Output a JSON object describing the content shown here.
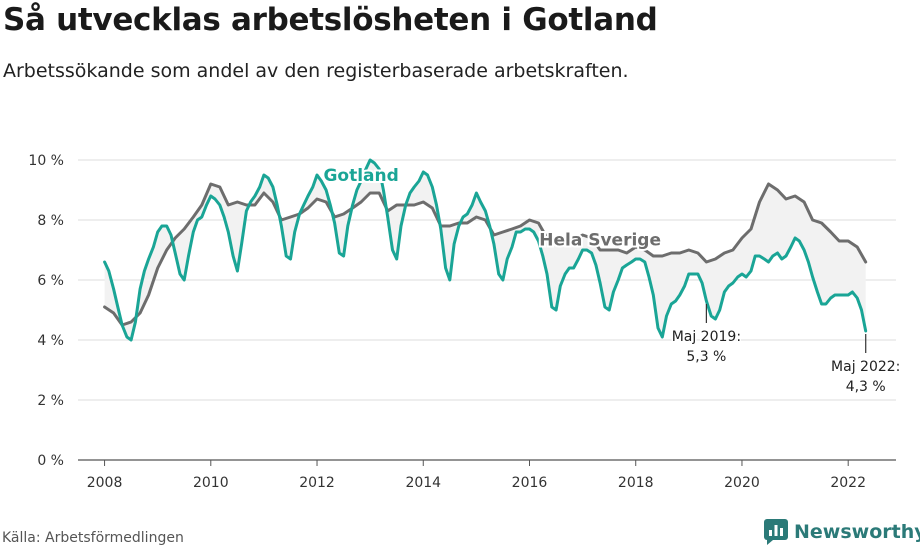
{
  "header": {
    "title": "Så utvecklas arbetslösheten i Gotland",
    "subtitle": "Arbetssökande som andel av den registerbaserade arbetskraften."
  },
  "footer": {
    "source": "Källa: Arbetsförmedlingen",
    "brand": "Newsworthy",
    "brand_icon": "newsworthy-logo-icon"
  },
  "colors": {
    "gotland": "#1aa596",
    "sverige": "#6d6d6d",
    "band": "#f2f2f2",
    "grid": "#dcdcdc",
    "brand": "#2b7a78"
  },
  "chart_data": {
    "type": "line",
    "xlim": [
      2007.5,
      2022.9
    ],
    "ylim": [
      0,
      10
    ],
    "x_ticks": [
      2008,
      2010,
      2012,
      2014,
      2016,
      2018,
      2020,
      2022
    ],
    "x_tick_labels": [
      "2008",
      "2010",
      "2012",
      "2014",
      "2016",
      "2018",
      "2020",
      "2022"
    ],
    "y_ticks": [
      0,
      2,
      4,
      6,
      8,
      10
    ],
    "y_tick_labels": [
      "0 %",
      "2 %",
      "4 %",
      "6 %",
      "8 %",
      "10 %"
    ],
    "grid": true,
    "series": [
      {
        "name": "Hela Sverige",
        "key": "sverige",
        "points": [
          [
            2008.0,
            5.1
          ],
          [
            2008.17,
            4.9
          ],
          [
            2008.33,
            4.5
          ],
          [
            2008.5,
            4.6
          ],
          [
            2008.67,
            4.9
          ],
          [
            2008.83,
            5.5
          ],
          [
            2009.0,
            6.4
          ],
          [
            2009.17,
            7.0
          ],
          [
            2009.33,
            7.4
          ],
          [
            2009.5,
            7.7
          ],
          [
            2009.67,
            8.1
          ],
          [
            2009.83,
            8.5
          ],
          [
            2010.0,
            9.2
          ],
          [
            2010.17,
            9.1
          ],
          [
            2010.33,
            8.5
          ],
          [
            2010.5,
            8.6
          ],
          [
            2010.67,
            8.5
          ],
          [
            2010.83,
            8.5
          ],
          [
            2011.0,
            8.9
          ],
          [
            2011.17,
            8.6
          ],
          [
            2011.33,
            8.0
          ],
          [
            2011.5,
            8.1
          ],
          [
            2011.67,
            8.2
          ],
          [
            2011.83,
            8.4
          ],
          [
            2012.0,
            8.7
          ],
          [
            2012.17,
            8.6
          ],
          [
            2012.33,
            8.1
          ],
          [
            2012.5,
            8.2
          ],
          [
            2012.67,
            8.4
          ],
          [
            2012.83,
            8.6
          ],
          [
            2013.0,
            8.9
          ],
          [
            2013.17,
            8.9
          ],
          [
            2013.33,
            8.3
          ],
          [
            2013.5,
            8.5
          ],
          [
            2013.67,
            8.5
          ],
          [
            2013.83,
            8.5
          ],
          [
            2014.0,
            8.6
          ],
          [
            2014.17,
            8.4
          ],
          [
            2014.33,
            7.8
          ],
          [
            2014.5,
            7.8
          ],
          [
            2014.67,
            7.9
          ],
          [
            2014.83,
            7.9
          ],
          [
            2015.0,
            8.1
          ],
          [
            2015.17,
            8.0
          ],
          [
            2015.33,
            7.5
          ],
          [
            2015.5,
            7.6
          ],
          [
            2015.67,
            7.7
          ],
          [
            2015.83,
            7.8
          ],
          [
            2016.0,
            8.0
          ],
          [
            2016.17,
            7.9
          ],
          [
            2016.33,
            7.4
          ],
          [
            2016.5,
            7.4
          ],
          [
            2016.67,
            7.3
          ],
          [
            2016.83,
            7.3
          ],
          [
            2017.0,
            7.5
          ],
          [
            2017.17,
            7.4
          ],
          [
            2017.33,
            7.0
          ],
          [
            2017.5,
            7.0
          ],
          [
            2017.67,
            7.0
          ],
          [
            2017.83,
            6.9
          ],
          [
            2018.0,
            7.1
          ],
          [
            2018.17,
            7.0
          ],
          [
            2018.33,
            6.8
          ],
          [
            2018.5,
            6.8
          ],
          [
            2018.67,
            6.9
          ],
          [
            2018.83,
            6.9
          ],
          [
            2019.0,
            7.0
          ],
          [
            2019.17,
            6.9
          ],
          [
            2019.33,
            6.6
          ],
          [
            2019.5,
            6.7
          ],
          [
            2019.67,
            6.9
          ],
          [
            2019.83,
            7.0
          ],
          [
            2020.0,
            7.4
          ],
          [
            2020.17,
            7.7
          ],
          [
            2020.33,
            8.6
          ],
          [
            2020.5,
            9.2
          ],
          [
            2020.67,
            9.0
          ],
          [
            2020.83,
            8.7
          ],
          [
            2021.0,
            8.8
          ],
          [
            2021.17,
            8.6
          ],
          [
            2021.33,
            8.0
          ],
          [
            2021.5,
            7.9
          ],
          [
            2021.67,
            7.6
          ],
          [
            2021.83,
            7.3
          ],
          [
            2022.0,
            7.3
          ],
          [
            2022.17,
            7.1
          ],
          [
            2022.33,
            6.6
          ]
        ]
      },
      {
        "name": "Gotland",
        "key": "gotland",
        "points": [
          [
            2008.0,
            6.6
          ],
          [
            2008.08,
            6.3
          ],
          [
            2008.17,
            5.7
          ],
          [
            2008.25,
            5.1
          ],
          [
            2008.33,
            4.5
          ],
          [
            2008.42,
            4.1
          ],
          [
            2008.5,
            4.0
          ],
          [
            2008.58,
            4.6
          ],
          [
            2008.67,
            5.7
          ],
          [
            2008.75,
            6.3
          ],
          [
            2008.83,
            6.7
          ],
          [
            2008.92,
            7.1
          ],
          [
            2009.0,
            7.6
          ],
          [
            2009.08,
            7.8
          ],
          [
            2009.17,
            7.8
          ],
          [
            2009.25,
            7.5
          ],
          [
            2009.33,
            6.9
          ],
          [
            2009.42,
            6.2
          ],
          [
            2009.5,
            6.0
          ],
          [
            2009.58,
            6.8
          ],
          [
            2009.67,
            7.6
          ],
          [
            2009.75,
            8.0
          ],
          [
            2009.83,
            8.1
          ],
          [
            2009.92,
            8.5
          ],
          [
            2010.0,
            8.8
          ],
          [
            2010.08,
            8.7
          ],
          [
            2010.17,
            8.5
          ],
          [
            2010.25,
            8.1
          ],
          [
            2010.33,
            7.6
          ],
          [
            2010.42,
            6.8
          ],
          [
            2010.5,
            6.3
          ],
          [
            2010.58,
            7.2
          ],
          [
            2010.67,
            8.3
          ],
          [
            2010.75,
            8.6
          ],
          [
            2010.83,
            8.8
          ],
          [
            2010.92,
            9.1
          ],
          [
            2011.0,
            9.5
          ],
          [
            2011.08,
            9.4
          ],
          [
            2011.17,
            9.1
          ],
          [
            2011.25,
            8.5
          ],
          [
            2011.33,
            7.8
          ],
          [
            2011.42,
            6.8
          ],
          [
            2011.5,
            6.7
          ],
          [
            2011.58,
            7.6
          ],
          [
            2011.67,
            8.2
          ],
          [
            2011.75,
            8.5
          ],
          [
            2011.83,
            8.8
          ],
          [
            2011.92,
            9.1
          ],
          [
            2012.0,
            9.5
          ],
          [
            2012.08,
            9.3
          ],
          [
            2012.17,
            9.0
          ],
          [
            2012.25,
            8.5
          ],
          [
            2012.33,
            7.9
          ],
          [
            2012.42,
            6.9
          ],
          [
            2012.5,
            6.8
          ],
          [
            2012.58,
            7.8
          ],
          [
            2012.67,
            8.5
          ],
          [
            2012.75,
            9.0
          ],
          [
            2012.83,
            9.3
          ],
          [
            2012.92,
            9.7
          ],
          [
            2013.0,
            10.0
          ],
          [
            2013.08,
            9.9
          ],
          [
            2013.17,
            9.7
          ],
          [
            2013.25,
            9.0
          ],
          [
            2013.33,
            8.1
          ],
          [
            2013.42,
            7.0
          ],
          [
            2013.5,
            6.7
          ],
          [
            2013.58,
            7.8
          ],
          [
            2013.67,
            8.5
          ],
          [
            2013.75,
            8.9
          ],
          [
            2013.83,
            9.1
          ],
          [
            2013.92,
            9.3
          ],
          [
            2014.0,
            9.6
          ],
          [
            2014.08,
            9.5
          ],
          [
            2014.17,
            9.1
          ],
          [
            2014.25,
            8.5
          ],
          [
            2014.33,
            7.7
          ],
          [
            2014.42,
            6.4
          ],
          [
            2014.5,
            6.0
          ],
          [
            2014.58,
            7.2
          ],
          [
            2014.67,
            7.8
          ],
          [
            2014.75,
            8.1
          ],
          [
            2014.83,
            8.2
          ],
          [
            2014.92,
            8.5
          ],
          [
            2015.0,
            8.9
          ],
          [
            2015.08,
            8.6
          ],
          [
            2015.17,
            8.3
          ],
          [
            2015.25,
            7.8
          ],
          [
            2015.33,
            7.2
          ],
          [
            2015.42,
            6.2
          ],
          [
            2015.5,
            6.0
          ],
          [
            2015.58,
            6.7
          ],
          [
            2015.67,
            7.1
          ],
          [
            2015.75,
            7.6
          ],
          [
            2015.83,
            7.6
          ],
          [
            2015.92,
            7.7
          ],
          [
            2016.0,
            7.7
          ],
          [
            2016.08,
            7.6
          ],
          [
            2016.17,
            7.3
          ],
          [
            2016.25,
            6.8
          ],
          [
            2016.33,
            6.2
          ],
          [
            2016.42,
            5.1
          ],
          [
            2016.5,
            5.0
          ],
          [
            2016.58,
            5.8
          ],
          [
            2016.67,
            6.2
          ],
          [
            2016.75,
            6.4
          ],
          [
            2016.83,
            6.4
          ],
          [
            2016.92,
            6.7
          ],
          [
            2017.0,
            7.0
          ],
          [
            2017.08,
            7.0
          ],
          [
            2017.17,
            6.9
          ],
          [
            2017.25,
            6.5
          ],
          [
            2017.33,
            5.9
          ],
          [
            2017.42,
            5.1
          ],
          [
            2017.5,
            5.0
          ],
          [
            2017.58,
            5.6
          ],
          [
            2017.67,
            6.0
          ],
          [
            2017.75,
            6.4
          ],
          [
            2017.83,
            6.5
          ],
          [
            2017.92,
            6.6
          ],
          [
            2018.0,
            6.7
          ],
          [
            2018.08,
            6.7
          ],
          [
            2018.17,
            6.6
          ],
          [
            2018.25,
            6.1
          ],
          [
            2018.33,
            5.5
          ],
          [
            2018.42,
            4.4
          ],
          [
            2018.5,
            4.1
          ],
          [
            2018.58,
            4.8
          ],
          [
            2018.67,
            5.2
          ],
          [
            2018.75,
            5.3
          ],
          [
            2018.83,
            5.5
          ],
          [
            2018.92,
            5.8
          ],
          [
            2019.0,
            6.2
          ],
          [
            2019.08,
            6.2
          ],
          [
            2019.17,
            6.2
          ],
          [
            2019.25,
            5.9
          ],
          [
            2019.33,
            5.3
          ],
          [
            2019.42,
            4.8
          ],
          [
            2019.5,
            4.7
          ],
          [
            2019.58,
            5.0
          ],
          [
            2019.67,
            5.6
          ],
          [
            2019.75,
            5.8
          ],
          [
            2019.83,
            5.9
          ],
          [
            2019.92,
            6.1
          ],
          [
            2020.0,
            6.2
          ],
          [
            2020.08,
            6.1
          ],
          [
            2020.17,
            6.3
          ],
          [
            2020.25,
            6.8
          ],
          [
            2020.33,
            6.8
          ],
          [
            2020.42,
            6.7
          ],
          [
            2020.5,
            6.6
          ],
          [
            2020.58,
            6.8
          ],
          [
            2020.67,
            6.9
          ],
          [
            2020.75,
            6.7
          ],
          [
            2020.83,
            6.8
          ],
          [
            2020.92,
            7.1
          ],
          [
            2021.0,
            7.4
          ],
          [
            2021.08,
            7.3
          ],
          [
            2021.17,
            7.0
          ],
          [
            2021.25,
            6.6
          ],
          [
            2021.33,
            6.1
          ],
          [
            2021.42,
            5.6
          ],
          [
            2021.5,
            5.2
          ],
          [
            2021.58,
            5.2
          ],
          [
            2021.67,
            5.4
          ],
          [
            2021.75,
            5.5
          ],
          [
            2021.83,
            5.5
          ],
          [
            2021.92,
            5.5
          ],
          [
            2022.0,
            5.5
          ],
          [
            2022.08,
            5.6
          ],
          [
            2022.17,
            5.4
          ],
          [
            2022.25,
            5.0
          ],
          [
            2022.33,
            4.3
          ]
        ]
      }
    ],
    "series_labels": [
      {
        "key": "gotland",
        "text": "Gotland",
        "x": 2012.83,
        "y": 9.5
      },
      {
        "key": "sverige",
        "text": "Hela Sverige",
        "x": 2017.33,
        "y": 7.35
      }
    ],
    "annotations": [
      {
        "text": "Maj 2019:",
        "value": "5,3 %",
        "x": 2019.33,
        "y": 5.3
      },
      {
        "text": "Maj 2022:",
        "value": "4,3 %",
        "x": 2022.33,
        "y": 4.3
      }
    ]
  }
}
